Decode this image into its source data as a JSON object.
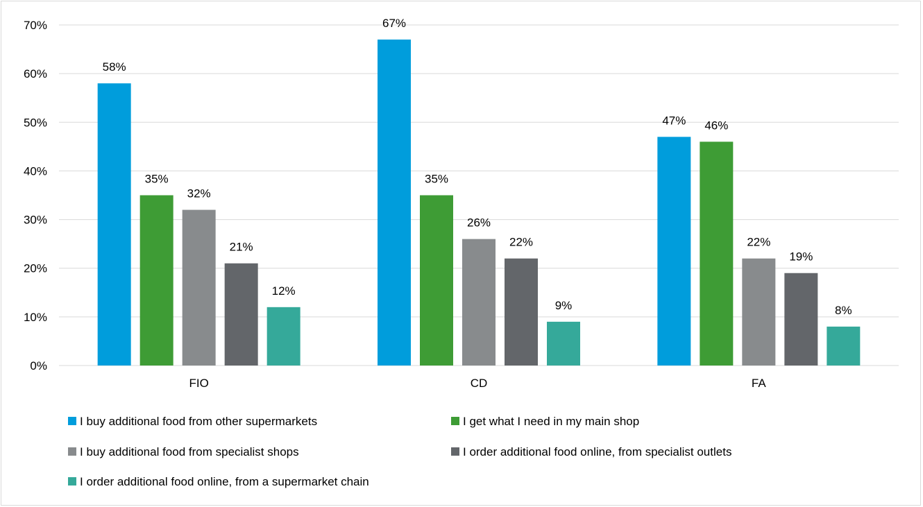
{
  "chart_data": {
    "type": "bar",
    "title": "",
    "xlabel": "",
    "ylabel": "",
    "ylim": [
      0,
      70
    ],
    "yticks": [
      0,
      10,
      20,
      30,
      40,
      50,
      60,
      70
    ],
    "ytick_labels": [
      "0%",
      "10%",
      "20%",
      "30%",
      "40%",
      "50%",
      "60%",
      "70%"
    ],
    "grid": true,
    "legend_position": "bottom",
    "categories": [
      "FIO",
      "CD",
      "FA"
    ],
    "series": [
      {
        "name": "I buy additional food from other supermarkets",
        "color": "#009ddc",
        "values": [
          58,
          67,
          47
        ],
        "labels": [
          "58%",
          "67%",
          "47%"
        ]
      },
      {
        "name": "I get what I need in my main shop",
        "color": "#3e9c35",
        "values": [
          35,
          35,
          46
        ],
        "labels": [
          "35%",
          "35%",
          "46%"
        ]
      },
      {
        "name": "I buy additional food from specialist shops",
        "color": "#888b8d",
        "values": [
          32,
          26,
          22
        ],
        "labels": [
          "32%",
          "26%",
          "22%"
        ]
      },
      {
        "name": "I order additional food online, from specialist outlets",
        "color": "#63666a",
        "values": [
          21,
          22,
          19
        ],
        "labels": [
          "21%",
          "22%",
          "19%"
        ]
      },
      {
        "name": "I order additional food online, from a supermarket chain",
        "color": "#35a99a",
        "values": [
          12,
          9,
          8
        ],
        "labels": [
          "12%",
          "9%",
          "8%"
        ]
      }
    ]
  }
}
